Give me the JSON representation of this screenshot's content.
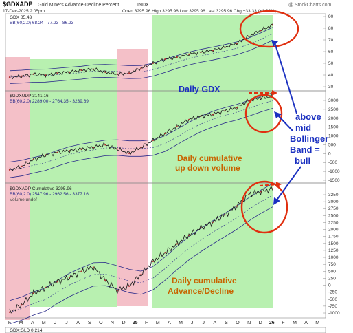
{
  "header": {
    "symbol": "$GDXADP",
    "name": "Gold Miners Advance-Decline Percent",
    "exchange": "INDX",
    "date": "17-Dec-2025 2:05pm",
    "quote": "Open 3295.96   High 3295.96   Low 3295.96   Last 3295.96   Chg +33.33 (+1.02%)",
    "watermark": "@ StockCharts.com"
  },
  "x_axis": {
    "months": [
      "F",
      "M",
      "A",
      "M",
      "J",
      "J",
      "A",
      "S",
      "O",
      "N",
      "D",
      "25",
      "F",
      "M",
      "A",
      "M",
      "J",
      "J",
      "A",
      "S",
      "O",
      "N",
      "D",
      "26",
      "F",
      "M",
      "A",
      "M"
    ]
  },
  "panels": [
    {
      "legend": [
        "GDX 85.43",
        "BB(60,2.0) 68.24 - 77.23 - 86.23"
      ],
      "y_ticks": [
        "90",
        "80",
        "70",
        "60",
        "50",
        "40",
        "30"
      ],
      "annotation": "Daily GDX"
    },
    {
      "legend": [
        "$GDXUDP 3141.16",
        "BB(60,2.0) 2289.00 - 2764.35 - 3239.69"
      ],
      "y_ticks": [
        "3000",
        "2500",
        "2000",
        "1500",
        "1000",
        "500",
        "0",
        "-500",
        "-1000",
        "-1500"
      ],
      "annotation": "Daily cumulative up down volume"
    },
    {
      "legend": [
        "$GDXADP Cumulative 3295.96",
        "BB(60,2.0) 2547.96 - 2962.56 - 3377.16",
        "Volume undef"
      ],
      "y_ticks": [
        "3250",
        "3000",
        "2750",
        "2500",
        "2250",
        "2000",
        "1750",
        "1500",
        "1250",
        "1000",
        "750",
        "500",
        "250",
        "0",
        "-250",
        "-500",
        "-750",
        "-1000"
      ],
      "annotation": "Daily cumulative Advance/Decline"
    }
  ],
  "bottom_panel": {
    "legend": "GDX:GLD 0.214"
  },
  "side_note": "above mid Bollinger Band = bull",
  "colors": {
    "pink_zone": "#f4c0c8",
    "green_zone": "#b8f0b0",
    "price": "#222222",
    "bollinger": "#2a2a8a",
    "annotation_blue": "#1a30c0",
    "annotation_orange": "#c86400",
    "circle_red": "#e03010"
  },
  "chart_data": {
    "type": "line",
    "x": [
      "2025-02",
      "2025-03",
      "2025-04",
      "2025-05",
      "2025-06",
      "2025-07",
      "2025-08",
      "2025-09",
      "2025-10",
      "2025-11",
      "2025-12",
      "2026-01",
      "2026-02",
      "2026-03",
      "2026-04",
      "2026-05",
      "2026-06",
      "2026-07",
      "2026-08",
      "2026-09",
      "2026-10",
      "2026-11",
      "2026-12"
    ],
    "series": [
      {
        "name": "GDX",
        "values": [
          33,
          34,
          36,
          35,
          37,
          38,
          40,
          41,
          38,
          36,
          37,
          42,
          47,
          51,
          53,
          56,
          58,
          60,
          63,
          67,
          74,
          80,
          85.43
        ]
      },
      {
        "name": "$GDXUDP",
        "values": [
          -1100,
          -900,
          -500,
          -250,
          -100,
          0,
          100,
          200,
          350,
          100,
          -150,
          200,
          600,
          1000,
          1400,
          1800,
          2000,
          2100,
          2300,
          2500,
          2900,
          3050,
          3141.16
        ]
      },
      {
        "name": "$GDXADP Cumulative",
        "values": [
          -950,
          -700,
          -300,
          -100,
          100,
          250,
          450,
          600,
          150,
          -200,
          -50,
          350,
          800,
          1100,
          1400,
          1700,
          1950,
          2150,
          2400,
          2700,
          3100,
          3200,
          3295.96
        ]
      }
    ]
  }
}
